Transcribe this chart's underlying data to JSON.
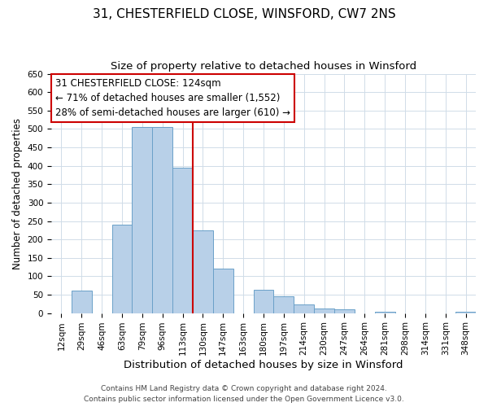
{
  "title": "31, CHESTERFIELD CLOSE, WINSFORD, CW7 2NS",
  "subtitle": "Size of property relative to detached houses in Winsford",
  "xlabel": "Distribution of detached houses by size in Winsford",
  "ylabel": "Number of detached properties",
  "bin_labels": [
    "12sqm",
    "29sqm",
    "46sqm",
    "63sqm",
    "79sqm",
    "96sqm",
    "113sqm",
    "130sqm",
    "147sqm",
    "163sqm",
    "180sqm",
    "197sqm",
    "214sqm",
    "230sqm",
    "247sqm",
    "264sqm",
    "281sqm",
    "298sqm",
    "314sqm",
    "331sqm",
    "348sqm"
  ],
  "bar_heights": [
    0,
    60,
    0,
    240,
    505,
    505,
    395,
    225,
    120,
    0,
    63,
    45,
    23,
    13,
    10,
    0,
    3,
    0,
    0,
    0,
    3
  ],
  "bar_color": "#b8d0e8",
  "bar_edge_color": "#6aa0c8",
  "grid_color": "#d0dce8",
  "marker_bin_index": 7,
  "marker_color": "#cc0000",
  "annotation_title": "31 CHESTERFIELD CLOSE: 124sqm",
  "annotation_line1": "← 71% of detached houses are smaller (1,552)",
  "annotation_line2": "28% of semi-detached houses are larger (610) →",
  "annotation_box_color": "#ffffff",
  "annotation_box_edge": "#cc0000",
  "ylim": [
    0,
    650
  ],
  "yticks": [
    0,
    50,
    100,
    150,
    200,
    250,
    300,
    350,
    400,
    450,
    500,
    550,
    600,
    650
  ],
  "footer1": "Contains HM Land Registry data © Crown copyright and database right 2024.",
  "footer2": "Contains public sector information licensed under the Open Government Licence v3.0.",
  "title_fontsize": 11,
  "subtitle_fontsize": 9.5,
  "xlabel_fontsize": 9.5,
  "ylabel_fontsize": 8.5,
  "tick_fontsize": 7.5,
  "annotation_fontsize": 8.5,
  "footer_fontsize": 6.5
}
